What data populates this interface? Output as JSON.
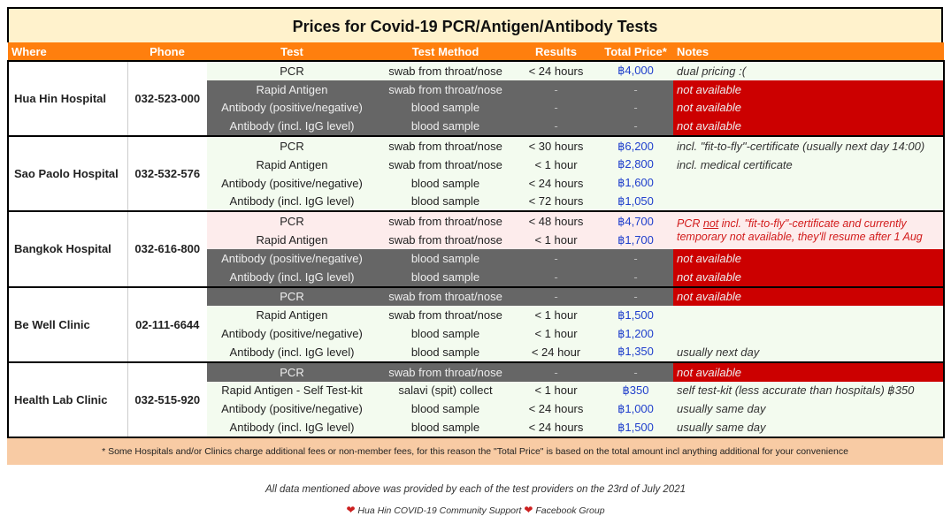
{
  "title": "Prices for Covid-19 PCR/Antigen/Antibody Tests",
  "headers": {
    "where": "Where",
    "phone": "Phone",
    "test": "Test",
    "method": "Test Method",
    "results": "Results",
    "price": "Total Price*",
    "notes": "Notes"
  },
  "providers": [
    {
      "name": "Hua Hin Hospital",
      "phone": "032-523-000",
      "rows": [
        {
          "test": "PCR",
          "method": "swab from throat/nose",
          "results": "< 24 hours",
          "price": "฿4,000",
          "note": "dual pricing :(",
          "state": "avail"
        },
        {
          "test": "Rapid Antigen",
          "method": "swab from throat/nose",
          "results": "-",
          "price": "-",
          "note": "not available",
          "state": "unav"
        },
        {
          "test": "Antibody (positive/negative)",
          "method": "blood sample",
          "results": "-",
          "price": "-",
          "note": "not available",
          "state": "unav"
        },
        {
          "test": "Antibody (incl. IgG level)",
          "method": "blood sample",
          "results": "-",
          "price": "-",
          "note": "not available",
          "state": "unav"
        }
      ]
    },
    {
      "name": "Sao Paolo Hospital",
      "phone": "032-532-576",
      "rows": [
        {
          "test": "PCR",
          "method": "swab from throat/nose",
          "results": "< 30 hours",
          "price": "฿6,200",
          "note": "incl. \"fit-to-fly\"-certificate (usually next day 14:00)",
          "state": "avail"
        },
        {
          "test": "Rapid Antigen",
          "method": "swab from throat/nose",
          "results": "< 1 hour",
          "price": "฿2,800",
          "note": "incl. medical certificate",
          "state": "avail"
        },
        {
          "test": "Antibody (positive/negative)",
          "method": "blood sample",
          "results": "< 24 hours",
          "price": "฿1,600",
          "note": "",
          "state": "avail"
        },
        {
          "test": "Antibody (incl. IgG level)",
          "method": "blood sample",
          "results": "< 72 hours",
          "price": "฿1,050",
          "note": "",
          "state": "avail"
        }
      ]
    },
    {
      "name": "Bangkok Hospital",
      "phone": "032-616-800",
      "pink_note": {
        "pre": "PCR ",
        "em": "not",
        "post": " incl. \"fit-to-fly\"-certificate and currently temporary not available, they'll resume after 1 Aug"
      },
      "rows": [
        {
          "test": "PCR",
          "method": "swab from throat/nose",
          "results": "< 48 hours",
          "price": "฿4,700",
          "note": "",
          "state": "pink"
        },
        {
          "test": "Rapid Antigen",
          "method": "swab from throat/nose",
          "results": "< 1 hour",
          "price": "฿1,700",
          "note": "",
          "state": "pink"
        },
        {
          "test": "Antibody (positive/negative)",
          "method": "blood sample",
          "results": "-",
          "price": "-",
          "note": "not available",
          "state": "unav"
        },
        {
          "test": "Antibody (incl. IgG level)",
          "method": "blood sample",
          "results": "-",
          "price": "-",
          "note": "not available",
          "state": "unav"
        }
      ]
    },
    {
      "name": "Be Well Clinic",
      "phone": "02-111-6644",
      "rows": [
        {
          "test": "PCR",
          "method": "swab from throat/nose",
          "results": "-",
          "price": "-",
          "note": "not available",
          "state": "unav"
        },
        {
          "test": "Rapid Antigen",
          "method": "swab from throat/nose",
          "results": "< 1 hour",
          "price": "฿1,500",
          "note": "",
          "state": "avail"
        },
        {
          "test": "Antibody (positive/negative)",
          "method": "blood sample",
          "results": "< 1 hour",
          "price": "฿1,200",
          "note": "",
          "state": "avail"
        },
        {
          "test": "Antibody (incl. IgG level)",
          "method": "blood sample",
          "results": "< 24 hour",
          "price": "฿1,350",
          "note": "usually next day",
          "state": "avail"
        }
      ]
    },
    {
      "name": "Health Lab Clinic",
      "phone": "032-515-920",
      "rows": [
        {
          "test": "PCR",
          "method": "swab from throat/nose",
          "results": "-",
          "price": "-",
          "note": "not available",
          "state": "unav"
        },
        {
          "test": "Rapid Antigen - Self Test-kit",
          "method": "salavi (spit) collect",
          "results": "< 1 hour",
          "price": "฿350",
          "note": "self test-kit (less accurate than hospitals) ฿350",
          "state": "avail"
        },
        {
          "test": "Antibody (positive/negative)",
          "method": "blood sample",
          "results": "< 24 hours",
          "price": "฿1,000",
          "note": "usually same day",
          "state": "avail"
        },
        {
          "test": "Antibody (incl. IgG level)",
          "method": "blood sample",
          "results": "< 24 hours",
          "price": "฿1,500",
          "note": "usually same day",
          "state": "avail"
        }
      ]
    }
  ],
  "footnote": "* Some Hospitals and/or Clinics charge additional fees or non-member fees, for this reason the \"Total Price\" is based on the total amount incl anything additional for your convenience",
  "source": "All data mentioned above was provided by each of the test providers on the 23rd of July 2021",
  "community": {
    "text1": "Hua Hin COVID-19 Community Support",
    "text2": "Facebook Group"
  },
  "colors": {
    "header": "#ff7f0e",
    "title_bg": "#fff2cc",
    "available": "#f3fbef",
    "unavailable": "#666666",
    "not_available_note": "#cc0000",
    "price": "#1f3fcc",
    "footnote_bg": "#f8cba4"
  },
  "icons": {
    "heart": "heart-icon"
  }
}
